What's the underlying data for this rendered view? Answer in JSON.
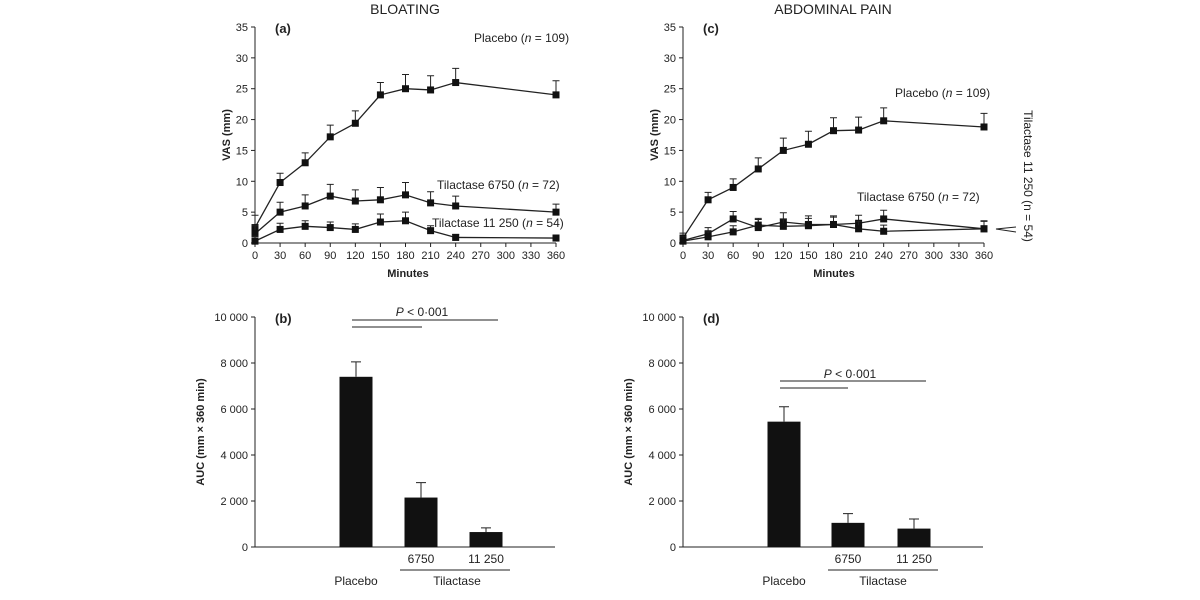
{
  "chart_data": [
    {
      "id": "a",
      "type": "line",
      "panel_label": "(a)",
      "title": "BLOATING",
      "xlabel": "Minutes",
      "ylabel": "VAS (mm)",
      "xlim": [
        0,
        360
      ],
      "ylim": [
        0,
        35
      ],
      "xticks": [
        0,
        30,
        60,
        90,
        120,
        150,
        180,
        210,
        240,
        270,
        300,
        330,
        360
      ],
      "yticks": [
        0,
        5,
        10,
        15,
        20,
        25,
        30,
        35
      ],
      "series": [
        {
          "name": "Placebo",
          "label_prefix": "Placebo (",
          "label_n": "n",
          "label_suffix": " = 109)",
          "x": [
            0,
            30,
            60,
            90,
            120,
            150,
            180,
            210,
            240,
            360
          ],
          "values": [
            2.5,
            9.8,
            13.0,
            17.2,
            19.4,
            24.0,
            25.0,
            24.8,
            26.0,
            24.0
          ],
          "err": [
            2.0,
            1.5,
            1.6,
            1.9,
            2.0,
            2.0,
            2.3,
            2.3,
            2.3,
            2.3
          ]
        },
        {
          "name": "Tilactase 6750",
          "label_prefix": "Tilactase 6750 (",
          "label_n": "n",
          "label_suffix": " = 72)",
          "x": [
            0,
            30,
            60,
            90,
            120,
            150,
            180,
            210,
            240,
            360
          ],
          "values": [
            1.5,
            5.0,
            6.0,
            7.6,
            6.8,
            7.0,
            7.8,
            6.5,
            6.0,
            5.0
          ],
          "err": [
            1.3,
            1.6,
            1.8,
            1.9,
            1.8,
            2.0,
            2.0,
            1.8,
            1.6,
            1.3
          ]
        },
        {
          "name": "Tilactase 11 250",
          "label_prefix": "Tilactase 11 250 (",
          "label_n": "n",
          "label_suffix": " = 54)",
          "x": [
            0,
            30,
            60,
            90,
            120,
            150,
            180,
            210,
            240,
            360
          ],
          "values": [
            0.3,
            2.2,
            2.7,
            2.5,
            2.2,
            3.4,
            3.6,
            2.0,
            0.9,
            0.8
          ],
          "err": [
            0.8,
            1.0,
            0.9,
            0.9,
            0.9,
            1.3,
            1.4,
            0.8,
            0.5,
            0.5
          ]
        }
      ]
    },
    {
      "id": "c",
      "type": "line",
      "panel_label": "(c)",
      "title": "ABDOMINAL PAIN",
      "xlabel": "Minutes",
      "ylabel": "VAS (mm)",
      "xlim": [
        0,
        360
      ],
      "ylim": [
        0,
        35
      ],
      "xticks": [
        0,
        30,
        60,
        90,
        120,
        150,
        180,
        210,
        240,
        270,
        300,
        330,
        360
      ],
      "yticks": [
        0,
        5,
        10,
        15,
        20,
        25,
        30,
        35
      ],
      "side_label": "Tilactase 11 250 (n = 54)",
      "series": [
        {
          "name": "Placebo",
          "label_prefix": "Placebo (",
          "label_n": "n",
          "label_suffix": " = 109)",
          "x": [
            0,
            30,
            60,
            90,
            120,
            150,
            180,
            210,
            240,
            360
          ],
          "values": [
            0.8,
            7.0,
            9.0,
            12.0,
            15.0,
            16.0,
            18.2,
            18.3,
            19.8,
            18.8
          ],
          "err": [
            0.8,
            1.2,
            1.4,
            1.8,
            2.0,
            2.1,
            2.1,
            2.1,
            2.1,
            2.2
          ]
        },
        {
          "name": "Tilactase 6750",
          "label_prefix": "Tilactase 6750 (",
          "label_n": "n",
          "label_suffix": " = 72)",
          "x": [
            0,
            30,
            60,
            90,
            120,
            150,
            180,
            210,
            240,
            360
          ],
          "values": [
            0.4,
            1.5,
            3.9,
            2.5,
            3.4,
            3.0,
            3.0,
            3.2,
            3.9,
            2.3
          ],
          "err": [
            0.6,
            1.0,
            1.2,
            1.3,
            1.5,
            1.4,
            1.4,
            1.3,
            1.4,
            1.3
          ]
        },
        {
          "name": "Tilactase 11 250",
          "x": [
            0,
            30,
            60,
            90,
            120,
            150,
            180,
            210,
            240,
            360
          ],
          "values": [
            0.3,
            1.0,
            1.8,
            2.9,
            2.7,
            2.8,
            3.0,
            2.3,
            1.9,
            2.3
          ],
          "err": [
            0.5,
            0.8,
            1.0,
            1.1,
            1.2,
            1.2,
            1.2,
            1.2,
            1.0,
            1.2
          ]
        }
      ]
    },
    {
      "id": "b",
      "type": "bar",
      "panel_label": "(b)",
      "ylabel": "AUC (mm × 360 min)",
      "ylim": [
        0,
        10000
      ],
      "yticks": [
        0,
        2000,
        4000,
        6000,
        8000,
        10000
      ],
      "ytick_labels": [
        "0",
        "2 000",
        "4 000",
        "6 000",
        "8 000",
        "10 000"
      ],
      "categories": [
        "Placebo",
        "6750",
        "11 250"
      ],
      "values": [
        7400,
        2150,
        650
      ],
      "err": [
        650,
        650,
        180
      ],
      "group_label": "Tilactase",
      "pvalue_p": "P",
      "pvalue_rest": " < 0·001"
    },
    {
      "id": "d",
      "type": "bar",
      "panel_label": "(d)",
      "ylabel": "AUC (mm × 360 min)",
      "ylim": [
        0,
        10000
      ],
      "yticks": [
        0,
        2000,
        4000,
        6000,
        8000,
        10000
      ],
      "ytick_labels": [
        "0",
        "2 000",
        "4 000",
        "6 000",
        "8 000",
        "10 000"
      ],
      "categories": [
        "Placebo",
        "6750",
        "11 250"
      ],
      "values": [
        5450,
        1050,
        800
      ],
      "err": [
        650,
        400,
        420
      ],
      "group_label": "Tilactase",
      "pvalue_p": "P",
      "pvalue_rest": " < 0·001"
    }
  ],
  "colors": {
    "ink": "#111111",
    "background": "#ffffff"
  }
}
